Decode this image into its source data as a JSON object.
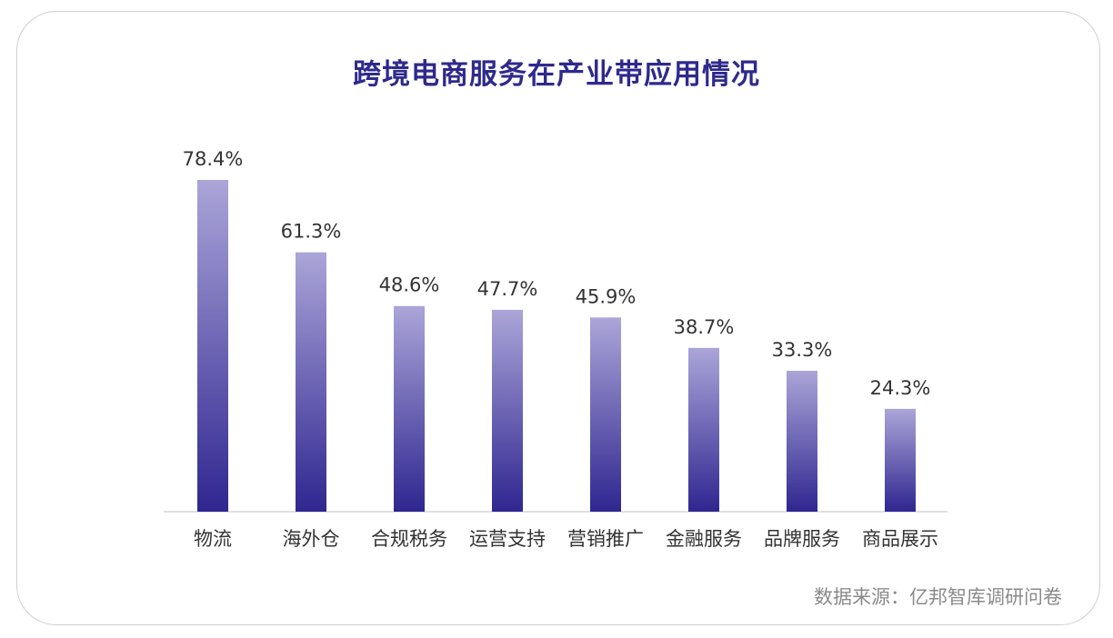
{
  "chart_data": {
    "type": "bar",
    "title": "跨境电商服务在产业带应用情况",
    "categories": [
      "物流",
      "海外仓",
      "合规税务",
      "运营支持",
      "营销推广",
      "金融服务",
      "品牌服务",
      "商品展示"
    ],
    "values": [
      78.4,
      61.3,
      48.6,
      47.7,
      45.9,
      38.7,
      33.3,
      24.3
    ],
    "value_labels": [
      "78.4%",
      "61.3%",
      "48.6%",
      "47.7%",
      "45.9%",
      "38.7%",
      "33.3%",
      "24.3%"
    ],
    "unit": "%",
    "ylim": [
      0,
      100
    ],
    "grid": false,
    "bar_gradient": {
      "top": "#aba5d8",
      "bottom": "#2f2690"
    },
    "baseline_color": "#d6d6d6",
    "source": "数据来源：亿邦智库调研问卷"
  }
}
